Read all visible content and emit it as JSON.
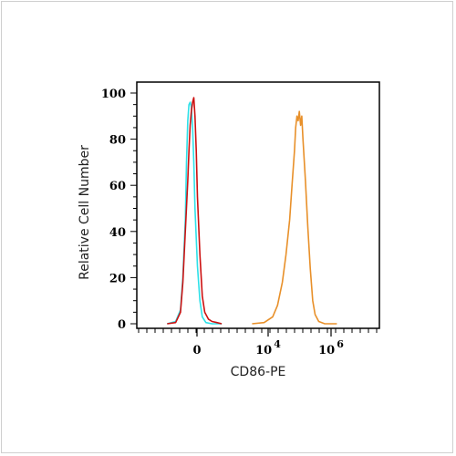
{
  "chart_data": {
    "type": "line",
    "xlabel": "CD86-PE",
    "ylabel": "Relative Cell Number",
    "ylim": [
      0,
      100
    ],
    "x_scale": "biexponential",
    "y_ticks": [
      0,
      20,
      40,
      60,
      80,
      100
    ],
    "x_tick_labels": [
      {
        "label": "0",
        "sup": ""
      },
      {
        "label": "10",
        "sup": "4"
      },
      {
        "label": "10",
        "sup": "6"
      }
    ],
    "grid": false,
    "legend": "none",
    "series": [
      {
        "color": "#2fe0e8",
        "points": [
          [
            -15,
            0
          ],
          [
            -8,
            1
          ],
          [
            -4,
            6
          ],
          [
            -2,
            20
          ],
          [
            0,
            45
          ],
          [
            1,
            70
          ],
          [
            2,
            88
          ],
          [
            3,
            95
          ],
          [
            4,
            96
          ],
          [
            5,
            94
          ],
          [
            6,
            85
          ],
          [
            7,
            70
          ],
          [
            8,
            50
          ],
          [
            10,
            25
          ],
          [
            12,
            10
          ],
          [
            14,
            3
          ],
          [
            17,
            0.5
          ],
          [
            22,
            0
          ],
          [
            30,
            0
          ]
        ]
      },
      {
        "color": "#cc1111",
        "points": [
          [
            -15,
            0
          ],
          [
            -8,
            0.5
          ],
          [
            -4,
            5
          ],
          [
            -2,
            18
          ],
          [
            0,
            40
          ],
          [
            2,
            62
          ],
          [
            3,
            75
          ],
          [
            4,
            86
          ],
          [
            5,
            92
          ],
          [
            6,
            96
          ],
          [
            7,
            98
          ],
          [
            8,
            90
          ],
          [
            9,
            75
          ],
          [
            10,
            55
          ],
          [
            12,
            30
          ],
          [
            14,
            12
          ],
          [
            16,
            5
          ],
          [
            19,
            2
          ],
          [
            22,
            1
          ],
          [
            26,
            0.5
          ],
          [
            30,
            0
          ]
        ]
      },
      {
        "color": "#e8902a",
        "points": [
          [
            55,
            0
          ],
          [
            65,
            0.5
          ],
          [
            72,
            3
          ],
          [
            76,
            8
          ],
          [
            80,
            18
          ],
          [
            83,
            30
          ],
          [
            86,
            45
          ],
          [
            88,
            60
          ],
          [
            90,
            75
          ],
          [
            91,
            85
          ],
          [
            92,
            90
          ],
          [
            93,
            88
          ],
          [
            94,
            92
          ],
          [
            95,
            86
          ],
          [
            96,
            90
          ],
          [
            97,
            80
          ],
          [
            99,
            62
          ],
          [
            101,
            42
          ],
          [
            103,
            24
          ],
          [
            105,
            10
          ],
          [
            107,
            4
          ],
          [
            110,
            1
          ],
          [
            115,
            0
          ],
          [
            125,
            0
          ]
        ]
      }
    ]
  }
}
